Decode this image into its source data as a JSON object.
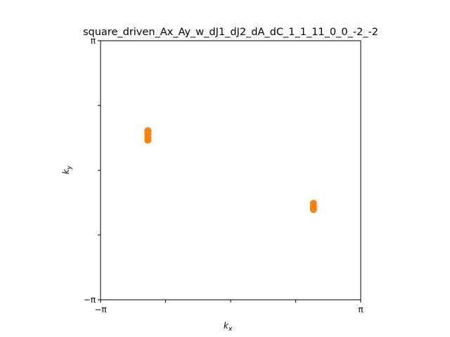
{
  "chart_data": {
    "type": "scatter",
    "title": "square_driven_Ax_Ay_w_dJ1_dJ2_dA_dC_1_1_11_0_0_-2_-2",
    "xlabel": "k",
    "xlabel_sub": "x",
    "ylabel": "k",
    "ylabel_sub": "y",
    "xlim": [
      -3.14159,
      3.14159
    ],
    "ylim": [
      -3.14159,
      3.14159
    ],
    "x_ticks": [
      {
        "value": -3.14159,
        "label": "−π"
      },
      {
        "value": -1.5708,
        "label": ""
      },
      {
        "value": 0,
        "label": ""
      },
      {
        "value": 1.5708,
        "label": ""
      },
      {
        "value": 3.14159,
        "label": "π"
      }
    ],
    "y_ticks": [
      {
        "value": -3.14159,
        "label": "−π"
      },
      {
        "value": -1.5708,
        "label": ""
      },
      {
        "value": 0,
        "label": ""
      },
      {
        "value": 1.5708,
        "label": ""
      },
      {
        "value": 3.14159,
        "label": "π"
      }
    ],
    "grid": false,
    "marker_color": "#ff7f0e",
    "series": [
      {
        "points": [
          {
            "x": -2.0,
            "y": 0.96
          },
          {
            "x": -2.0,
            "y": 0.88
          },
          {
            "x": -2.0,
            "y": 0.8
          },
          {
            "x": -2.0,
            "y": 0.73
          },
          {
            "x": 2.0,
            "y": -0.8
          },
          {
            "x": 2.0,
            "y": -0.88
          },
          {
            "x": 2.0,
            "y": -0.95
          }
        ]
      }
    ]
  }
}
